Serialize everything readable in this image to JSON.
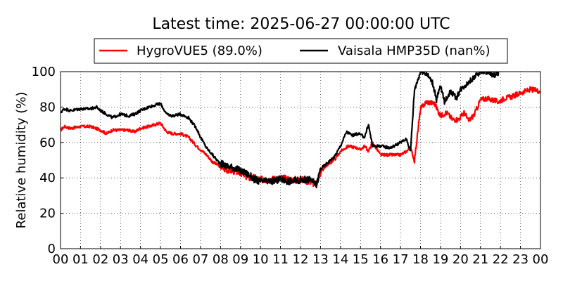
{
  "chart_data": {
    "type": "line",
    "title": "Latest time: 2025-06-27 00:00:00 UTC",
    "xlabel": "",
    "ylabel": "Relative humidity (%)",
    "xlim": [
      0,
      24
    ],
    "ylim": [
      0,
      100
    ],
    "xticks": [
      "00",
      "01",
      "02",
      "03",
      "04",
      "05",
      "06",
      "07",
      "08",
      "09",
      "10",
      "11",
      "12",
      "13",
      "14",
      "15",
      "16",
      "17",
      "18",
      "19",
      "20",
      "21",
      "22",
      "23",
      "00"
    ],
    "yticks": [
      0,
      20,
      40,
      60,
      80,
      100
    ],
    "grid": true,
    "legend_position": "top-center",
    "series": [
      {
        "name": "HygroVUE5 (89.0%)",
        "color": "#ff0000",
        "x": [
          0,
          0.2,
          0.5,
          1,
          1.5,
          2,
          2.3,
          2.6,
          3,
          3.4,
          3.7,
          4,
          4.4,
          4.7,
          5,
          5.3,
          5.6,
          6,
          6.4,
          6.8,
          7,
          7.3,
          7.6,
          7.9,
          8.2,
          8.6,
          9,
          9.4,
          9.7,
          10,
          10.5,
          11,
          11.5,
          12,
          12.5,
          12.8,
          13,
          13.3,
          13.7,
          14,
          14.4,
          14.8,
          15,
          15.2,
          15.4,
          15.6,
          16,
          16.5,
          17,
          17.3,
          17.5,
          17.7,
          18,
          18.3,
          18.7,
          19,
          19.3,
          19.6,
          19.9,
          20.2,
          20.4,
          20.7,
          21,
          21.3,
          21.6,
          21.9,
          22.2,
          22.6,
          23,
          23.5,
          24
        ],
        "y": [
          67,
          69,
          68,
          69,
          69,
          67,
          65,
          67,
          67,
          67,
          66,
          68,
          69,
          70,
          71,
          66,
          65,
          65,
          63,
          58,
          56,
          53,
          49,
          47,
          45,
          44,
          43,
          40,
          40,
          39,
          39,
          40,
          39,
          39,
          38,
          36,
          43,
          47,
          50,
          55,
          58,
          57,
          56,
          58,
          55,
          60,
          53,
          53,
          53,
          55,
          57,
          50,
          79,
          83,
          82,
          75,
          77,
          73,
          73,
          77,
          72,
          76,
          84,
          85,
          84,
          83,
          85,
          86,
          88,
          90,
          89
        ]
      },
      {
        "name": "Vaisala HMP35D (nan%)",
        "color": "#000000",
        "x": [
          0,
          0.2,
          0.5,
          1,
          1.5,
          1.8,
          2,
          2.3,
          2.6,
          3,
          3.4,
          3.7,
          4,
          4.4,
          4.7,
          5,
          5.3,
          5.6,
          6,
          6.4,
          6.8,
          7,
          7.3,
          7.6,
          7.9,
          8.2,
          8.6,
          9,
          9.4,
          9.7,
          10,
          10.5,
          11,
          11.5,
          12,
          12.5,
          12.8,
          13,
          13.3,
          13.7,
          14,
          14.3,
          14.6,
          14.9,
          15.2,
          15.4,
          15.6,
          16,
          16.5,
          17,
          17.3,
          17.5,
          17.7,
          18,
          18.3,
          18.6,
          18.8,
          19,
          19.2,
          19.5,
          19.8,
          20,
          20.3,
          20.6,
          21,
          21.3,
          21.6,
          21.9
        ],
        "y": [
          77,
          79,
          78,
          79,
          79,
          80,
          78,
          76,
          74,
          76,
          75,
          76,
          78,
          80,
          81,
          82,
          76,
          75,
          76,
          74,
          68,
          63,
          57,
          53,
          49,
          47,
          46,
          44,
          42,
          39,
          38,
          38,
          39,
          38,
          39,
          39,
          36,
          45,
          48,
          52,
          58,
          66,
          64,
          65,
          63,
          70,
          58,
          58,
          57,
          60,
          62,
          55,
          90,
          100,
          99,
          94,
          84,
          92,
          83,
          89,
          85,
          90,
          93,
          96,
          100,
          100,
          98,
          99
        ]
      }
    ]
  }
}
